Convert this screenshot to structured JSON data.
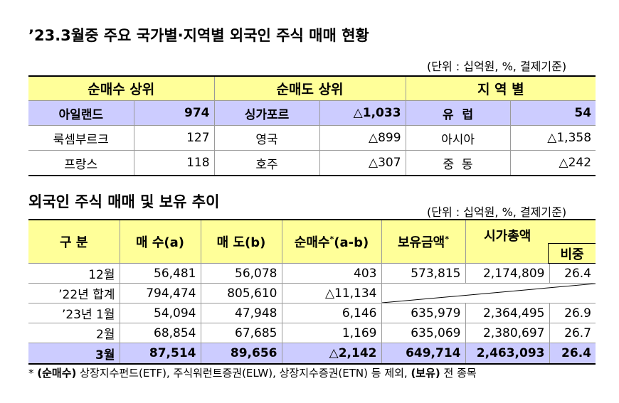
{
  "title_main": "’23.3월중 주요 국가별·지역별 외국인 주식 매매 현황",
  "unit_note": "(단위 : 십억원, %, 결제기준)",
  "top_table": {
    "headers": [
      "순매수 상위",
      "순매도 상위",
      "지 역 별"
    ],
    "rows": [
      {
        "buy_country": "아일랜드",
        "buy_value": "974",
        "sell_country": "싱가포르",
        "sell_value": "△1,033",
        "region": "유  럽",
        "region_value": "54"
      },
      {
        "buy_country": "룩셈부르크",
        "buy_value": "127",
        "sell_country": "영국",
        "sell_value": "△899",
        "region": "아시아",
        "region_value": "△1,358"
      },
      {
        "buy_country": "프랑스",
        "buy_value": "118",
        "sell_country": "호주",
        "sell_value": "△307",
        "region": "중  동",
        "region_value": "△242"
      }
    ]
  },
  "title_trend": "외국인 주식 매매 및 보유 추이",
  "trend_table": {
    "headers": {
      "period": "구 분",
      "buy": "매 수(a)",
      "sell": "매 도(b)",
      "net_buy": "순매수",
      "net_buy_suffix": "(a-b)",
      "holdings": "보유금액",
      "market_cap": "시가총액",
      "ratio": "비중",
      "asterisk": "*"
    },
    "rows": [
      {
        "period": "12월",
        "buy": "56,481",
        "sell": "56,078",
        "net": "403",
        "holdings": "573,815",
        "mcap": "2,174,809",
        "ratio": "26.4"
      },
      {
        "period": "’22년 합계",
        "buy": "794,474",
        "sell": "805,610",
        "net": "△11,134",
        "holdings": "",
        "mcap": "",
        "ratio": ""
      },
      {
        "period": "’23년 1월",
        "buy": "54,094",
        "sell": "47,948",
        "net": "6,146",
        "holdings": "635,979",
        "mcap": "2,364,495",
        "ratio": "26.9"
      },
      {
        "period": "2월",
        "buy": "68,854",
        "sell": "67,685",
        "net": "1,169",
        "holdings": "635,069",
        "mcap": "2,380,697",
        "ratio": "26.7"
      },
      {
        "period": "3월",
        "buy": "87,514",
        "sell": "89,656",
        "net": "△2,142",
        "holdings": "649,714",
        "mcap": "2,463,093",
        "ratio": "26.4"
      }
    ]
  },
  "footnote": {
    "mark": "*",
    "net_label": "(순매수)",
    "net_text": " 상장지수펀드(ETF), 주식워런트증권(ELW), 상장지수증권(ETN) 등 제외, ",
    "hold_label": "(보유)",
    "hold_text": " 전 종목"
  },
  "colors": {
    "header_bg": "#ffff99",
    "highlight_bg": "#ccccff"
  }
}
